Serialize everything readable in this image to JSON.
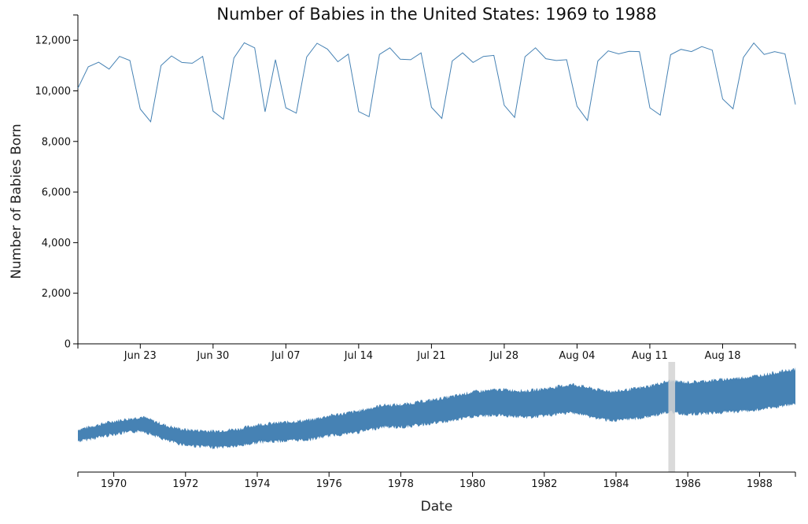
{
  "chart_data": {
    "type": "line",
    "title": "Number of Babies in the United States: 1969 to 1988",
    "ylabel": "Number of Babies Born",
    "xlabel": "Date",
    "colors": {
      "series": "#4682b4",
      "brush": "#d3d3d3",
      "axis": "#000000"
    },
    "focus": {
      "period": "Jun 17 – Aug 25, 1985 (daily)",
      "ylim": [
        0,
        13000
      ],
      "y_ticks": [
        0,
        2000,
        4000,
        6000,
        8000,
        10000,
        12000
      ],
      "y_tick_labels": [
        "0",
        "2,000",
        "4,000",
        "6,000",
        "8,000",
        "10,000",
        "12,000"
      ],
      "x_ticks": [
        "Jun 23",
        "Jun 30",
        "Jul 07",
        "Jul 14",
        "Jul 21",
        "Jul 28",
        "Aug 04",
        "Aug 11",
        "Aug 18"
      ],
      "values": [
        10100,
        10950,
        11130,
        10860,
        11360,
        11200,
        9280,
        8780,
        11000,
        11380,
        11120,
        11090,
        11360,
        9200,
        8880,
        11300,
        11900,
        11700,
        9170,
        11230,
        9330,
        9120,
        11340,
        11880,
        11650,
        11150,
        11450,
        9180,
        8980,
        11440,
        11700,
        11250,
        11230,
        11500,
        9350,
        8910,
        11180,
        11500,
        11120,
        11360,
        11400,
        9430,
        8950,
        11350,
        11700,
        11270,
        11200,
        11230,
        9390,
        8830,
        11180,
        11580,
        11460,
        11560,
        11550,
        9330,
        9040,
        11430,
        11640,
        11550,
        11750,
        11610,
        9680,
        9290,
        11320,
        11890,
        11440,
        11550,
        11460,
        9460
      ]
    },
    "context": {
      "x_range": [
        1969,
        1989
      ],
      "x_ticks": [
        "1970",
        "1972",
        "1974",
        "1976",
        "1978",
        "1980",
        "1982",
        "1984",
        "1986",
        "1988"
      ],
      "brush_range": [
        "1985-06-17",
        "1985-08-25"
      ],
      "trend": [
        [
          1969.0,
          8600
        ],
        [
          1970.0,
          9000
        ],
        [
          1970.8,
          9200
        ],
        [
          1971.5,
          8700
        ],
        [
          1972.0,
          8500
        ],
        [
          1972.8,
          8400
        ],
        [
          1973.5,
          8500
        ],
        [
          1974.0,
          8700
        ],
        [
          1974.8,
          8800
        ],
        [
          1975.5,
          8900
        ],
        [
          1976.0,
          9100
        ],
        [
          1976.8,
          9300
        ],
        [
          1977.5,
          9600
        ],
        [
          1978.0,
          9600
        ],
        [
          1978.8,
          9800
        ],
        [
          1979.5,
          10000
        ],
        [
          1980.0,
          10200
        ],
        [
          1980.8,
          10300
        ],
        [
          1981.5,
          10200
        ],
        [
          1982.0,
          10300
        ],
        [
          1982.8,
          10500
        ],
        [
          1983.5,
          10200
        ],
        [
          1984.0,
          10100
        ],
        [
          1984.8,
          10300
        ],
        [
          1985.5,
          10600
        ],
        [
          1986.0,
          10500
        ],
        [
          1986.8,
          10600
        ],
        [
          1987.5,
          10700
        ],
        [
          1988.0,
          10800
        ],
        [
          1989.0,
          11100
        ]
      ]
    }
  }
}
